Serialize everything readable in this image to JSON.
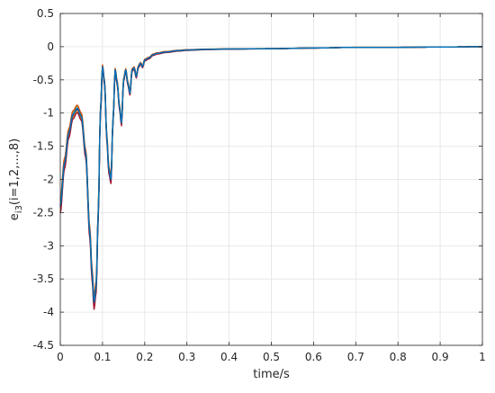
{
  "chart_data": {
    "type": "line",
    "xlabel": "time/s",
    "ylabel": {
      "prefix": "e",
      "subscript": "i3",
      "suffix": "(i=1,2,...,8)"
    },
    "xlim": [
      0,
      1
    ],
    "ylim": [
      -4.5,
      0.5
    ],
    "xticks": [
      0,
      0.1,
      0.2,
      0.3,
      0.4,
      0.5,
      0.6,
      0.7,
      0.8,
      0.9,
      1
    ],
    "xtick_labels": [
      "0",
      "0.1",
      "0.2",
      "0.3",
      "0.4",
      "0.5",
      "0.6",
      "0.7",
      "0.8",
      "0.9",
      "1"
    ],
    "yticks": [
      0.5,
      0,
      -0.5,
      -1,
      -1.5,
      -2,
      -2.5,
      -3,
      -3.5,
      -4,
      -4.5
    ],
    "ytick_labels": [
      "0.5",
      "0",
      "-0.5",
      "-1",
      "-1.5",
      "-2",
      "-2.5",
      "-3",
      "-3.5",
      "-4",
      "-4.5"
    ],
    "grid": true,
    "series": [
      {
        "color": "#7e2f8e",
        "offset": -0.03,
        "scale": 1.0
      },
      {
        "color": "#4dbeee",
        "offset": 0.02,
        "scale": 1.0
      },
      {
        "color": "#77ac30",
        "offset": 0.04,
        "scale": 0.99
      },
      {
        "color": "#edb120",
        "offset": -0.05,
        "scale": 1.01
      },
      {
        "color": "#a2142f",
        "offset": -0.06,
        "scale": 1.02
      },
      {
        "color": "#d95319",
        "offset": 0.05,
        "scale": 0.985
      },
      {
        "color": "#262626",
        "offset": 0.0,
        "scale": 1.0
      },
      {
        "color": "#0072bd",
        "offset": 0.0,
        "scale": 1.0
      }
    ],
    "base_curve": {
      "x": [
        0,
        0.01,
        0.02,
        0.03,
        0.04,
        0.05,
        0.06,
        0.07,
        0.075,
        0.08,
        0.085,
        0.09,
        0.095,
        0.1,
        0.105,
        0.11,
        0.115,
        0.12,
        0.125,
        0.13,
        0.135,
        0.14,
        0.145,
        0.15,
        0.155,
        0.16,
        0.165,
        0.17,
        0.175,
        0.18,
        0.185,
        0.19,
        0.195,
        0.2,
        0.21,
        0.22,
        0.23,
        0.25,
        0.28,
        0.3,
        0.35,
        0.4,
        0.5,
        0.6,
        0.7,
        0.8,
        0.9,
        1.0
      ],
      "y": [
        -2.4,
        -1.75,
        -1.3,
        -1.02,
        -0.93,
        -1.05,
        -1.6,
        -2.8,
        -3.4,
        -3.85,
        -3.6,
        -2.5,
        -1.0,
        -0.3,
        -0.55,
        -1.35,
        -1.85,
        -2.0,
        -1.1,
        -0.35,
        -0.55,
        -0.9,
        -1.15,
        -0.5,
        -0.35,
        -0.55,
        -0.7,
        -0.35,
        -0.32,
        -0.45,
        -0.3,
        -0.25,
        -0.3,
        -0.2,
        -0.17,
        -0.12,
        -0.1,
        -0.08,
        -0.06,
        -0.05,
        -0.04,
        -0.035,
        -0.03,
        -0.02,
        -0.01,
        -0.01,
        -0.005,
        0.0
      ]
    }
  }
}
